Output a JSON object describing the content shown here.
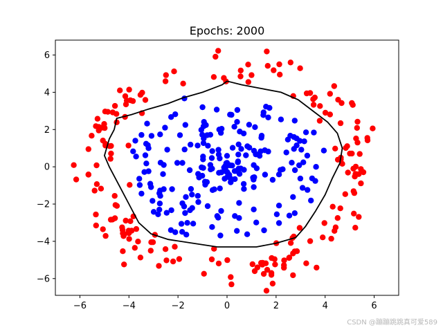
{
  "chart_data": {
    "type": "scatter",
    "title": "Epochs: 2000",
    "xlabel": "",
    "ylabel": "",
    "xlim": [
      -7,
      7
    ],
    "ylim": [
      -6.9,
      6.8
    ],
    "x_ticks": [
      -6,
      -4,
      -2,
      0,
      2,
      4,
      6
    ],
    "y_ticks": [
      -6,
      -4,
      -2,
      0,
      2,
      4,
      6
    ],
    "grid": false,
    "series": [
      {
        "color": "#ff0000",
        "marker": "circle",
        "class_label": "outer ring",
        "points": []
      },
      {
        "color": "#0000ff",
        "marker": "circle",
        "class_label": "inner disk",
        "points": []
      }
    ],
    "decision_boundary": {
      "color": "#000000",
      "points": [
        [
          -4.6,
          2.0
        ],
        [
          -4.5,
          2.6
        ],
        [
          -3.9,
          2.8
        ],
        [
          -3.2,
          3.1
        ],
        [
          -2.4,
          3.4
        ],
        [
          -1.8,
          3.7
        ],
        [
          -1.0,
          4.0
        ],
        [
          -0.2,
          4.4
        ],
        [
          0.0,
          4.6
        ],
        [
          0.6,
          4.4
        ],
        [
          1.4,
          4.2
        ],
        [
          2.2,
          4.0
        ],
        [
          2.9,
          3.6
        ],
        [
          3.5,
          3.0
        ],
        [
          4.1,
          2.4
        ],
        [
          4.5,
          1.8
        ],
        [
          4.7,
          1.0
        ],
        [
          4.6,
          0.2
        ],
        [
          4.3,
          -0.6
        ],
        [
          4.0,
          -1.5
        ],
        [
          3.6,
          -2.4
        ],
        [
          3.2,
          -3.2
        ],
        [
          2.8,
          -3.8
        ],
        [
          2.0,
          -4.1
        ],
        [
          1.2,
          -4.3
        ],
        [
          0.4,
          -4.3
        ],
        [
          -0.4,
          -4.3
        ],
        [
          -1.4,
          -4.1
        ],
        [
          -2.4,
          -3.9
        ],
        [
          -3.1,
          -3.6
        ],
        [
          -3.6,
          -3.0
        ],
        [
          -4.0,
          -2.0
        ],
        [
          -4.4,
          -1.0
        ],
        [
          -4.8,
          0.0
        ],
        [
          -5.0,
          0.6
        ],
        [
          -4.8,
          1.5
        ],
        [
          -4.6,
          2.0
        ]
      ]
    }
  },
  "watermark": "CSDN @蹦蹦跳跳真可爱589"
}
